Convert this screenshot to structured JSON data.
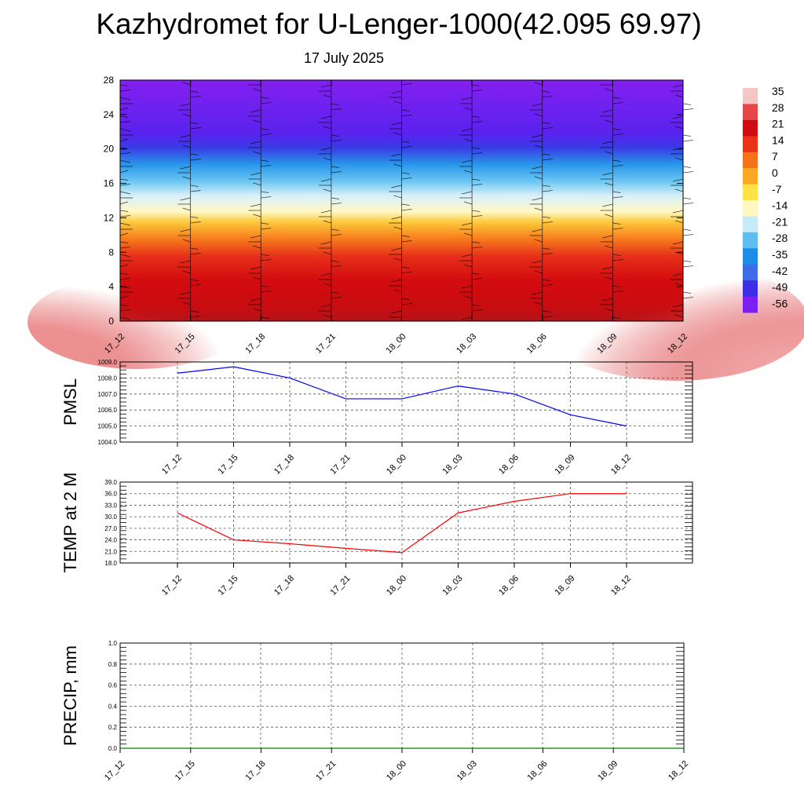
{
  "title": "Kazhydromet for U-Lenger-1000(42.095 69.97)",
  "subtitle": "17 July 2025",
  "chart_data": [
    {
      "type": "heatmap",
      "name": "temperature-cross-section",
      "x_categories": [
        "17_12",
        "17_15",
        "17_18",
        "17_21",
        "18_00",
        "18_03",
        "18_06",
        "18_09",
        "18_12"
      ],
      "ylim": [
        0,
        28
      ],
      "y_ticks": [
        "0",
        "4",
        "8",
        "12",
        "16",
        "20",
        "24",
        "28"
      ],
      "colorbar_labels": [
        "35",
        "28",
        "21",
        "14",
        "7",
        "0",
        "-7",
        "-14",
        "-21",
        "-28",
        "-35",
        "-42",
        "-49",
        "-56"
      ],
      "colorbar_colors": [
        "#f4c6c6",
        "#e6484a",
        "#cf0c12",
        "#e93218",
        "#f57218",
        "#fba824",
        "#fee246",
        "#fff7c0",
        "#c6eaf8",
        "#5fbdf0",
        "#1d8ee8",
        "#3f6ae8",
        "#3b2ee6",
        "#7d1ef2"
      ],
      "has_wind_barbs": true
    },
    {
      "type": "line",
      "name": "pmsl",
      "ylabel": "PMSL",
      "x": [
        "17_12",
        "17_15",
        "17_18",
        "17_21",
        "18_00",
        "18_03",
        "18_06",
        "18_09",
        "18_12"
      ],
      "values": [
        1008.3,
        1008.7,
        1008.0,
        1006.7,
        1006.7,
        1007.5,
        1007.0,
        1005.7,
        1005.0
      ],
      "ylim": [
        1004.0,
        1009.0
      ],
      "y_ticks": [
        "1004.0",
        "1005.0",
        "1006.0",
        "1007.0",
        "1008.0",
        "1009.0"
      ],
      "color": "#0000ff",
      "grid": true
    },
    {
      "type": "line",
      "name": "temp2m",
      "ylabel": "TEMP at 2 M",
      "x": [
        "17_12",
        "17_15",
        "17_18",
        "17_21",
        "18_00",
        "18_03",
        "18_06",
        "18_09",
        "18_12"
      ],
      "values": [
        31.0,
        24.0,
        23.0,
        21.8,
        20.7,
        31.0,
        34.0,
        36.0,
        36.0
      ],
      "ylim": [
        18.0,
        39.0
      ],
      "y_ticks": [
        "18.0",
        "21.0",
        "24.0",
        "27.0",
        "30.0",
        "33.0",
        "36.0",
        "39.0"
      ],
      "color": "#ff0000",
      "grid": true
    },
    {
      "type": "line",
      "name": "precip",
      "ylabel": "PRECIP, mm",
      "x": [
        "17_12",
        "17_15",
        "17_18",
        "17_21",
        "18_00",
        "18_03",
        "18_06",
        "18_09",
        "18_12"
      ],
      "values": [
        0,
        0,
        0,
        0,
        0,
        0,
        0,
        0,
        0
      ],
      "ylim": [
        0.0,
        1.0
      ],
      "y_ticks": [
        "0.0",
        "0.2",
        "0.4",
        "0.6",
        "0.8",
        "1.0"
      ],
      "color": "#008000",
      "grid": true
    }
  ]
}
